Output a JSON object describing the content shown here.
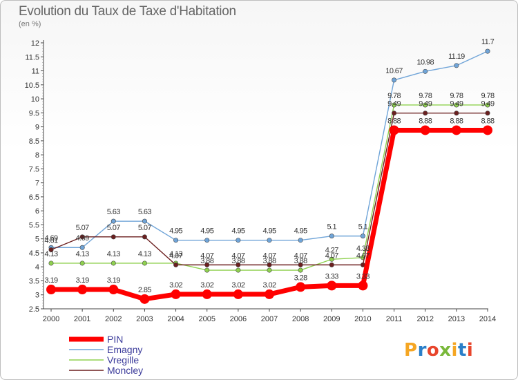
{
  "chart_data": {
    "type": "line",
    "title": "Evolution du Taux de Taxe d'Habitation",
    "subtitle": "(en %)",
    "xlabel": "",
    "ylabel": "",
    "ylim": [
      2.5,
      12
    ],
    "y_ticks": [
      "2.5",
      "3",
      "3.5",
      "4",
      "4.5",
      "5",
      "5.5",
      "6",
      "6.5",
      "7",
      "7.5",
      "8",
      "8.5",
      "9",
      "9.5",
      "10",
      "10.5",
      "11",
      "11.5",
      "12"
    ],
    "x": [
      "2000",
      "2001",
      "2002",
      "2003",
      "2004",
      "2005",
      "2006",
      "2007",
      "2008",
      "2009",
      "2010",
      "2011",
      "2012",
      "2013",
      "2014"
    ],
    "grid": false,
    "legend_position": "bottom-left",
    "series": [
      {
        "name": "PIN",
        "color": "#ff0000",
        "values": [
          3.19,
          3.19,
          3.19,
          2.85,
          3.02,
          3.02,
          3.02,
          3.02,
          3.28,
          3.33,
          3.33,
          8.88,
          8.88,
          8.88,
          8.88
        ],
        "labels": [
          "3.19",
          "3.19",
          "3.19",
          "2.85",
          "3.02",
          "3.02",
          "3.02",
          "3.02",
          "3.28",
          "3.33",
          "3.33",
          "8.88",
          "8.88",
          "8.88",
          "8.88"
        ]
      },
      {
        "name": "Emagny",
        "color": "#6fa4d8",
        "values": [
          4.69,
          4.69,
          5.63,
          5.63,
          4.95,
          4.95,
          4.95,
          4.95,
          4.95,
          5.1,
          5.1,
          10.67,
          10.98,
          11.19,
          11.7
        ],
        "labels": [
          "4.69",
          "4.69",
          "5.63",
          "5.63",
          "4.95",
          "4.95",
          "4.95",
          "4.95",
          "4.95",
          "5.1",
          "5.1",
          "10.67",
          "10.98",
          "11.19",
          "11.7"
        ]
      },
      {
        "name": "Vregille",
        "color": "#8fd14f",
        "values": [
          4.13,
          4.13,
          4.13,
          4.13,
          4.13,
          3.88,
          3.88,
          3.88,
          3.88,
          4.27,
          4.33,
          9.78,
          9.78,
          9.78,
          9.78
        ],
        "labels": [
          "4.13",
          "4.13",
          "4.13",
          "4.13",
          "4.13",
          "3.88",
          "3.88",
          "3.88",
          "3.88",
          "4.27",
          "4.33",
          "9.78",
          "9.78",
          "9.78",
          "9.78"
        ]
      },
      {
        "name": "Moncley",
        "color": "#6b1f1f",
        "values": [
          4.61,
          5.07,
          5.07,
          5.07,
          4.07,
          4.07,
          4.07,
          4.07,
          4.07,
          4.07,
          4.07,
          9.49,
          9.49,
          9.49,
          9.49
        ],
        "labels": [
          "4.61",
          "5.07",
          "5.07",
          "5.07",
          "4.07",
          "4.07",
          "4.07",
          "4.07",
          "4.07",
          "4.07",
          "4.07",
          "9.49",
          "9.49",
          "9.49",
          "9.49"
        ]
      }
    ]
  },
  "brand": {
    "logo_text": "Proxiti",
    "logo_colors": [
      "#f5a623",
      "#2a7fc9",
      "#e8452c",
      "#79b83a",
      "#f5a623",
      "#2a7fc9",
      "#e8452c"
    ]
  }
}
